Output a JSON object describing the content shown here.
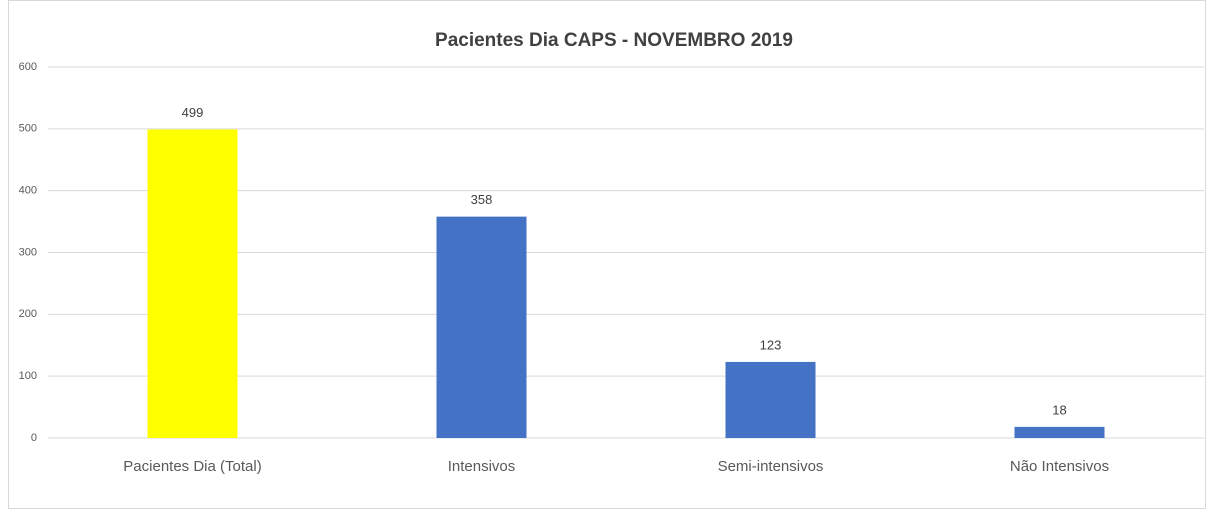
{
  "chart_data": {
    "type": "bar",
    "title": "Pacientes Dia  CAPS - NOVEMBRO 2019",
    "categories": [
      "Pacientes Dia (Total)",
      "Intensivos",
      "Semi-intensivos",
      "Não Intensivos"
    ],
    "values": [
      499,
      358,
      123,
      18
    ],
    "colors": [
      "#ffff00",
      "#4472c4",
      "#4472c4",
      "#4472c4"
    ],
    "ylim": [
      0,
      600
    ],
    "yticks": [
      0,
      100,
      200,
      300,
      400,
      500,
      600
    ],
    "grid": true
  }
}
